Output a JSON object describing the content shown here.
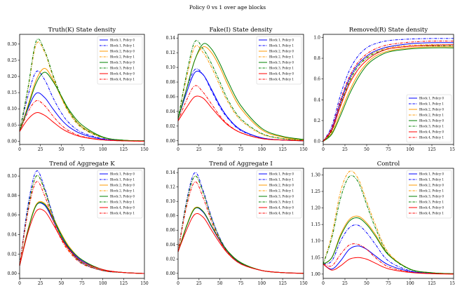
{
  "figure_title": "Policy 0 vs 1 over age blocks",
  "legend_entries": [
    "Block 1, Policy 0",
    "Block 1, Policy 1",
    "Block 2, Policy 0",
    "Block 2, Policy 1",
    "Block 3, Policy 0",
    "Block 3, Policy 1",
    "Block 4, Policy 0",
    "Block 4, Policy 1"
  ],
  "series_style": [
    {
      "color": "#0000ff",
      "dash": "solid"
    },
    {
      "color": "#0000ff",
      "dash": "dashdot"
    },
    {
      "color": "#ff9900",
      "dash": "solid"
    },
    {
      "color": "#ff9900",
      "dash": "dashdot"
    },
    {
      "color": "#008000",
      "dash": "solid"
    },
    {
      "color": "#008000",
      "dash": "dashdot"
    },
    {
      "color": "#ff0000",
      "dash": "solid"
    },
    {
      "color": "#ff0000",
      "dash": "dashdot"
    }
  ],
  "chart_data": [
    {
      "type": "line",
      "title": "Truth(K) State density",
      "x": [
        0,
        10,
        20,
        30,
        40,
        50,
        60,
        75,
        100,
        125,
        150
      ],
      "xlim": [
        0,
        150
      ],
      "ylim": [
        -0.01,
        0.33
      ],
      "xticks": [
        0,
        25,
        50,
        75,
        100,
        125,
        150
      ],
      "yticks": [
        0.0,
        0.05,
        0.1,
        0.15,
        0.2,
        0.25,
        0.3
      ],
      "yformat": "2",
      "legend": "top-right",
      "series": [
        {
          "name": "Block 1, Policy 0",
          "values": [
            0.03,
            0.1,
            0.148,
            0.135,
            0.1,
            0.067,
            0.043,
            0.022,
            0.006,
            0.002,
            0.001
          ]
        },
        {
          "name": "Block 1, Policy 1",
          "values": [
            0.03,
            0.14,
            0.215,
            0.19,
            0.135,
            0.088,
            0.055,
            0.027,
            0.008,
            0.002,
            0.001
          ]
        },
        {
          "name": "Block 2, Policy 0",
          "values": [
            0.03,
            0.11,
            0.19,
            0.225,
            0.19,
            0.135,
            0.09,
            0.045,
            0.012,
            0.003,
            0.001
          ]
        },
        {
          "name": "Block 2, Policy 1",
          "values": [
            0.03,
            0.16,
            0.3,
            0.275,
            0.2,
            0.135,
            0.085,
            0.04,
            0.011,
            0.003,
            0.001
          ]
        },
        {
          "name": "Block 3, Policy 0",
          "values": [
            0.03,
            0.105,
            0.18,
            0.213,
            0.185,
            0.14,
            0.095,
            0.05,
            0.013,
            0.003,
            0.001
          ]
        },
        {
          "name": "Block 3, Policy 1",
          "values": [
            0.03,
            0.165,
            0.31,
            0.28,
            0.205,
            0.14,
            0.09,
            0.043,
            0.012,
            0.003,
            0.001
          ]
        },
        {
          "name": "Block 4, Policy 0",
          "values": [
            0.03,
            0.068,
            0.088,
            0.08,
            0.06,
            0.04,
            0.026,
            0.013,
            0.004,
            0.001,
            0.0
          ]
        },
        {
          "name": "Block 4, Policy 1",
          "values": [
            0.03,
            0.09,
            0.125,
            0.11,
            0.078,
            0.05,
            0.031,
            0.015,
            0.004,
            0.001,
            0.0
          ]
        }
      ]
    },
    {
      "type": "line",
      "title": "Fake(I) State density",
      "x": [
        0,
        10,
        20,
        30,
        40,
        50,
        60,
        75,
        100,
        125,
        150
      ],
      "xlim": [
        0,
        150
      ],
      "ylim": [
        -0.005,
        0.145
      ],
      "xticks": [
        0,
        25,
        50,
        75,
        100,
        125,
        150
      ],
      "yticks": [
        0.0,
        0.02,
        0.04,
        0.06,
        0.08,
        0.1,
        0.12,
        0.14
      ],
      "yformat": "2",
      "legend": "top-right",
      "series": [
        {
          "name": "Block 1, Policy 0",
          "values": [
            0.03,
            0.065,
            0.093,
            0.09,
            0.07,
            0.048,
            0.031,
            0.015,
            0.004,
            0.001,
            0.0
          ]
        },
        {
          "name": "Block 1, Policy 1",
          "values": [
            0.03,
            0.07,
            0.097,
            0.09,
            0.068,
            0.046,
            0.03,
            0.014,
            0.004,
            0.001,
            0.0
          ]
        },
        {
          "name": "Block 2, Policy 0",
          "values": [
            0.03,
            0.07,
            0.11,
            0.128,
            0.12,
            0.1,
            0.075,
            0.044,
            0.015,
            0.005,
            0.001
          ]
        },
        {
          "name": "Block 2, Policy 1",
          "values": [
            0.03,
            0.085,
            0.128,
            0.12,
            0.1,
            0.075,
            0.052,
            0.028,
            0.009,
            0.003,
            0.001
          ]
        },
        {
          "name": "Block 3, Policy 0",
          "values": [
            0.03,
            0.07,
            0.11,
            0.132,
            0.125,
            0.105,
            0.08,
            0.048,
            0.017,
            0.006,
            0.002
          ]
        },
        {
          "name": "Block 3, Policy 1",
          "values": [
            0.03,
            0.09,
            0.135,
            0.125,
            0.105,
            0.08,
            0.055,
            0.03,
            0.01,
            0.003,
            0.001
          ]
        },
        {
          "name": "Block 4, Policy 0",
          "values": [
            0.027,
            0.045,
            0.06,
            0.058,
            0.045,
            0.032,
            0.021,
            0.011,
            0.003,
            0.001,
            0.0
          ]
        },
        {
          "name": "Block 4, Policy 1",
          "values": [
            0.027,
            0.055,
            0.075,
            0.066,
            0.05,
            0.034,
            0.022,
            0.011,
            0.003,
            0.001,
            0.0
          ]
        }
      ]
    },
    {
      "type": "line",
      "title": "Removed(R) State density",
      "x": [
        0,
        10,
        20,
        30,
        40,
        50,
        60,
        75,
        100,
        125,
        150
      ],
      "xlim": [
        0,
        150
      ],
      "ylim": [
        -0.03,
        1.03
      ],
      "xticks": [
        0,
        25,
        50,
        75,
        100,
        125,
        150
      ],
      "yticks": [
        0.0,
        0.2,
        0.4,
        0.6,
        0.8,
        1.0
      ],
      "yformat": "1",
      "legend": "bottom-right",
      "series": [
        {
          "name": "Block 1, Policy 0",
          "values": [
            0.0,
            0.12,
            0.38,
            0.6,
            0.74,
            0.82,
            0.87,
            0.91,
            0.94,
            0.95,
            0.95
          ]
        },
        {
          "name": "Block 1, Policy 1",
          "values": [
            0.0,
            0.15,
            0.45,
            0.68,
            0.82,
            0.9,
            0.94,
            0.97,
            0.985,
            0.99,
            0.99
          ]
        },
        {
          "name": "Block 2, Policy 0",
          "values": [
            0.0,
            0.08,
            0.28,
            0.48,
            0.64,
            0.75,
            0.82,
            0.87,
            0.9,
            0.91,
            0.91
          ]
        },
        {
          "name": "Block 2, Policy 1",
          "values": [
            0.0,
            0.1,
            0.36,
            0.58,
            0.72,
            0.81,
            0.86,
            0.9,
            0.925,
            0.93,
            0.93
          ]
        },
        {
          "name": "Block 3, Policy 0",
          "values": [
            0.0,
            0.07,
            0.25,
            0.45,
            0.61,
            0.73,
            0.8,
            0.86,
            0.89,
            0.9,
            0.9
          ]
        },
        {
          "name": "Block 3, Policy 1",
          "values": [
            0.0,
            0.1,
            0.35,
            0.57,
            0.72,
            0.8,
            0.85,
            0.89,
            0.915,
            0.92,
            0.92
          ]
        },
        {
          "name": "Block 4, Policy 0",
          "values": [
            0.0,
            0.11,
            0.34,
            0.55,
            0.69,
            0.78,
            0.84,
            0.89,
            0.915,
            0.925,
            0.93
          ]
        },
        {
          "name": "Block 4, Policy 1",
          "values": [
            0.0,
            0.13,
            0.4,
            0.62,
            0.76,
            0.84,
            0.89,
            0.93,
            0.955,
            0.965,
            0.965
          ]
        }
      ]
    },
    {
      "type": "line",
      "title": "Trend of Aggregate K",
      "x": [
        0,
        10,
        20,
        30,
        40,
        50,
        60,
        75,
        100,
        125,
        150
      ],
      "xlim": [
        0,
        150
      ],
      "ylim": [
        -0.005,
        0.108
      ],
      "xticks": [
        0,
        25,
        50,
        75,
        100,
        125,
        150
      ],
      "yticks": [
        0.0,
        0.02,
        0.04,
        0.06,
        0.08,
        0.1
      ],
      "yformat": "2",
      "legend": "top-right",
      "series": [
        {
          "name": "Block 1, Policy 0",
          "values": [
            0.008,
            0.045,
            0.07,
            0.07,
            0.055,
            0.038,
            0.025,
            0.013,
            0.004,
            0.001,
            0.0
          ]
        },
        {
          "name": "Block 1, Policy 1",
          "values": [
            0.008,
            0.07,
            0.105,
            0.088,
            0.06,
            0.038,
            0.024,
            0.011,
            0.003,
            0.001,
            0.0
          ]
        },
        {
          "name": "Block 2, Policy 0",
          "values": [
            0.008,
            0.045,
            0.071,
            0.072,
            0.058,
            0.041,
            0.027,
            0.014,
            0.004,
            0.001,
            0.0
          ]
        },
        {
          "name": "Block 2, Policy 1",
          "values": [
            0.008,
            0.065,
            0.1,
            0.085,
            0.058,
            0.037,
            0.023,
            0.011,
            0.003,
            0.001,
            0.0
          ]
        },
        {
          "name": "Block 3, Policy 0",
          "values": [
            0.008,
            0.044,
            0.07,
            0.071,
            0.057,
            0.04,
            0.026,
            0.014,
            0.004,
            0.001,
            0.0
          ]
        },
        {
          "name": "Block 3, Policy 1",
          "values": [
            0.008,
            0.066,
            0.1,
            0.086,
            0.059,
            0.038,
            0.024,
            0.011,
            0.003,
            0.001,
            0.0
          ]
        },
        {
          "name": "Block 4, Policy 0",
          "values": [
            0.008,
            0.042,
            0.064,
            0.064,
            0.051,
            0.036,
            0.024,
            0.012,
            0.004,
            0.001,
            0.0
          ]
        },
        {
          "name": "Block 4, Policy 1",
          "values": [
            0.008,
            0.063,
            0.094,
            0.08,
            0.055,
            0.035,
            0.022,
            0.01,
            0.003,
            0.001,
            0.0
          ]
        }
      ]
    },
    {
      "type": "line",
      "title": "Trend of Aggregate I",
      "x": [
        0,
        10,
        20,
        30,
        40,
        50,
        60,
        75,
        100,
        125,
        150
      ],
      "xlim": [
        0,
        150
      ],
      "ylim": [
        -0.007,
        0.146
      ],
      "xticks": [
        0,
        25,
        50,
        75,
        100,
        125,
        150
      ],
      "yticks": [
        0.0,
        0.02,
        0.04,
        0.06,
        0.08,
        0.1,
        0.12,
        0.14
      ],
      "yformat": "2",
      "legend": "top-right",
      "series": [
        {
          "name": "Block 1, Policy 0",
          "values": [
            0.03,
            0.065,
            0.09,
            0.085,
            0.065,
            0.045,
            0.029,
            0.014,
            0.004,
            0.001,
            0.0
          ]
        },
        {
          "name": "Block 1, Policy 1",
          "values": [
            0.03,
            0.1,
            0.14,
            0.115,
            0.078,
            0.049,
            0.03,
            0.014,
            0.004,
            0.001,
            0.0
          ]
        },
        {
          "name": "Block 2, Policy 0",
          "values": [
            0.03,
            0.066,
            0.091,
            0.086,
            0.066,
            0.046,
            0.03,
            0.015,
            0.004,
            0.001,
            0.0
          ]
        },
        {
          "name": "Block 2, Policy 1",
          "values": [
            0.03,
            0.097,
            0.135,
            0.112,
            0.076,
            0.048,
            0.029,
            0.014,
            0.004,
            0.001,
            0.0
          ]
        },
        {
          "name": "Block 3, Policy 0",
          "values": [
            0.03,
            0.065,
            0.09,
            0.086,
            0.066,
            0.046,
            0.03,
            0.015,
            0.004,
            0.001,
            0.0
          ]
        },
        {
          "name": "Block 3, Policy 1",
          "values": [
            0.03,
            0.097,
            0.135,
            0.112,
            0.076,
            0.048,
            0.029,
            0.014,
            0.004,
            0.001,
            0.0
          ]
        },
        {
          "name": "Block 4, Policy 0",
          "values": [
            0.03,
            0.06,
            0.082,
            0.078,
            0.06,
            0.042,
            0.027,
            0.013,
            0.004,
            0.001,
            0.0
          ]
        },
        {
          "name": "Block 4, Policy 1",
          "values": [
            0.03,
            0.092,
            0.127,
            0.105,
            0.072,
            0.045,
            0.028,
            0.013,
            0.004,
            0.001,
            0.0
          ]
        }
      ]
    },
    {
      "type": "line",
      "title": "Control",
      "x": [
        0,
        10,
        20,
        30,
        40,
        50,
        60,
        75,
        100,
        125,
        150
      ],
      "xlim": [
        0,
        150
      ],
      "ylim": [
        0.987,
        1.32
      ],
      "xticks": [
        0,
        25,
        50,
        75,
        100,
        125,
        150
      ],
      "yticks": [
        1.0,
        1.05,
        1.1,
        1.15,
        1.2,
        1.25,
        1.3
      ],
      "yformat": "2",
      "legend": "top-right",
      "series": [
        {
          "name": "Block 1, Policy 0",
          "values": [
            1.03,
            1.015,
            1.04,
            1.075,
            1.085,
            1.075,
            1.055,
            1.028,
            1.008,
            1.002,
            1.001
          ]
        },
        {
          "name": "Block 1, Policy 1",
          "values": [
            1.03,
            1.04,
            1.1,
            1.14,
            1.148,
            1.125,
            1.09,
            1.04,
            1.01,
            1.002,
            1.001
          ]
        },
        {
          "name": "Block 2, Policy 0",
          "values": [
            1.03,
            1.05,
            1.12,
            1.165,
            1.175,
            1.155,
            1.12,
            1.06,
            1.015,
            1.004,
            1.001
          ]
        },
        {
          "name": "Block 2, Policy 1",
          "values": [
            1.03,
            1.12,
            1.25,
            1.31,
            1.29,
            1.22,
            1.15,
            1.065,
            1.015,
            1.004,
            1.001
          ]
        },
        {
          "name": "Block 3, Policy 0",
          "values": [
            1.03,
            1.05,
            1.115,
            1.16,
            1.17,
            1.15,
            1.115,
            1.058,
            1.015,
            1.004,
            1.001
          ]
        },
        {
          "name": "Block 3, Policy 1",
          "values": [
            1.03,
            1.11,
            1.23,
            1.295,
            1.28,
            1.21,
            1.14,
            1.06,
            1.014,
            1.004,
            1.001
          ]
        },
        {
          "name": "Block 4, Policy 0",
          "values": [
            1.03,
            1.012,
            1.025,
            1.045,
            1.05,
            1.045,
            1.033,
            1.016,
            1.005,
            1.001,
            1.0
          ]
        },
        {
          "name": "Block 4, Policy 1",
          "values": [
            1.03,
            1.025,
            1.06,
            1.088,
            1.09,
            1.075,
            1.05,
            1.022,
            1.006,
            1.002,
            1.0
          ]
        }
      ]
    }
  ]
}
